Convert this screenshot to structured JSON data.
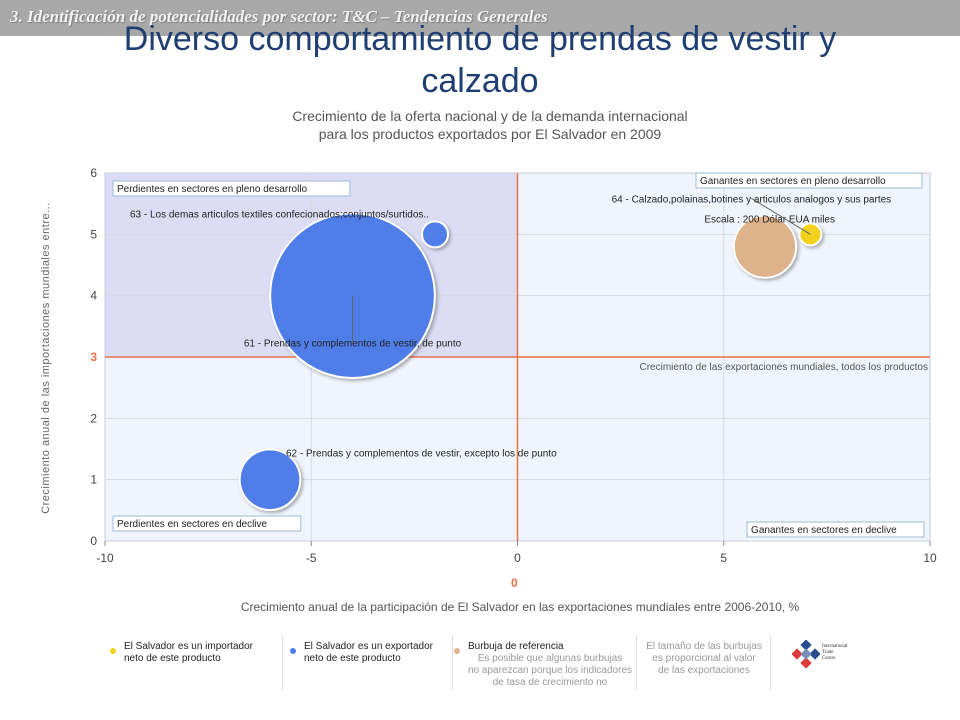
{
  "section_title": "3. Identificación de potencialidades por sector: T&C – Tendencias Generales",
  "slide_title_line1": "Diverso comportamiento de prendas de vestir y",
  "slide_title_line2": "calzado",
  "colors": {
    "topbar": "#a8a8a8",
    "title": "#1f3f73",
    "quadrant_top_left": "#dcdcf5",
    "quadrant_other": "#f0f4fc",
    "reference_line": "#e8704a",
    "bubble_exporter": "#4f7ee8",
    "bubble_importer": "#f2d21a",
    "bubble_reference": "#deb28a"
  },
  "chart_data": {
    "type": "scatter",
    "subtype": "bubble",
    "title_line1": "Crecimiento de la oferta nacional y de la demanda internacional",
    "title_line2": "para los productos exportados por El Salvador en 2009",
    "xlabel": "Crecimiento anual de la participación de El Salvador en las exportaciones mundiales entre 2006-2010, %",
    "ylabel": "Crecimiento anual de las importaciones mundiales entre...",
    "xlim": [
      -10,
      10
    ],
    "ylim": [
      0,
      6
    ],
    "xticks": [
      -10,
      -5,
      0,
      5,
      10
    ],
    "yticks": [
      0,
      1,
      2,
      3,
      4,
      5,
      6
    ],
    "grid": true,
    "reference_x": 0,
    "reference_x_label": "0",
    "reference_y": 3,
    "reference_y_tick": "3",
    "reference_y_label": "Crecimiento de las exportaciones mundiales, todos los productos",
    "quadrants": {
      "top_left": "Perdientes en sectores en pleno desarrollo",
      "top_right": "Ganantes en sectores en pleno desarrollo",
      "bottom_left": "Perdientes en sectores en declive",
      "bottom_right": "Ganantes en sectores en declive"
    },
    "points": [
      {
        "label": "61 - Prendas y complementos de vestir, de punto",
        "x": -4,
        "y": 4,
        "size": 1400,
        "kind": "exporter"
      },
      {
        "label": "63 - Los demas articulos textiles confecionados;conjuntos/surtidos..",
        "x": -2,
        "y": 5,
        "size": 35,
        "kind": "exporter"
      },
      {
        "label": "62 - Prendas y complementos de vestir, excepto los de punto",
        "x": -6,
        "y": 1,
        "size": 190,
        "kind": "exporter"
      },
      {
        "label": "64 - Calzado,polainas,botines y articulos analogos y sus partes",
        "x": 7.1,
        "y": 5,
        "size": 25,
        "kind": "importer"
      }
    ],
    "reference_bubble": {
      "label": "Escala : 200 Dólar EUA miles",
      "x": 6,
      "y": 4.8,
      "size": 200
    }
  },
  "legend": {
    "importer_line1": "El Salvador es un importador",
    "importer_line2": "neto de este producto",
    "exporter_line1": "El Salvador es un exportador",
    "exporter_line2": "neto de este producto",
    "reference_title": "Burbuja de referencia",
    "reference_note_line1": "Es posible que algunas burbujas",
    "reference_note_line2": "no aparezcan porque los indicadores",
    "reference_note_line3": "de tasa de crecimiento no",
    "size_note_line1": "El tamaño de las burbujas",
    "size_note_line2": "es proporcional al valor",
    "size_note_line3": "de las exportaciones",
    "logo_line1": "International",
    "logo_line2": "Trade",
    "logo_line3": "Centre"
  }
}
